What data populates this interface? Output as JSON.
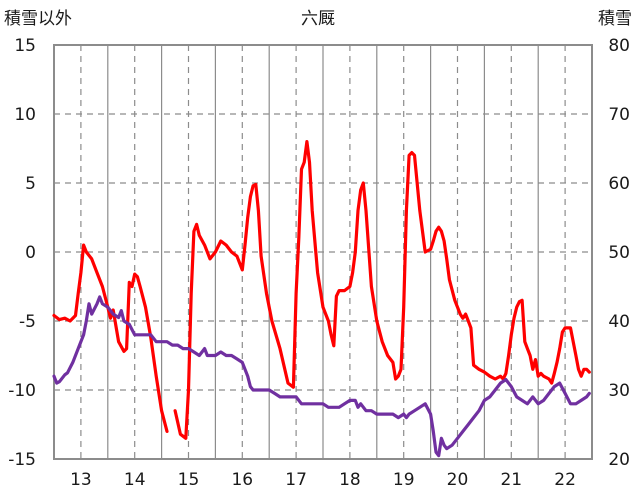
{
  "chart_data": {
    "type": "line",
    "title": "六厩",
    "left_axis_label": "積雪以外",
    "right_axis_label": "積雪",
    "left_ylim": [
      -15,
      15
    ],
    "left_yticks": [
      "15",
      "10",
      "5",
      "0",
      "-5",
      "-10",
      "-15"
    ],
    "right_ylim": [
      20,
      80
    ],
    "right_yticks": [
      "80",
      "70",
      "60",
      "50",
      "40",
      "30",
      "20"
    ],
    "xlim": [
      12.5,
      22.5
    ],
    "xticks": [
      "13",
      "14",
      "15",
      "16",
      "17",
      "18",
      "19",
      "20",
      "21",
      "22"
    ],
    "grid": true,
    "series": [
      {
        "color": "#ff0000",
        "axis": "left",
        "segments": [
          [
            [
              12.5,
              -4.6
            ],
            [
              12.6,
              -4.9
            ],
            [
              12.7,
              -4.8
            ],
            [
              12.8,
              -5.0
            ],
            [
              12.9,
              -4.6
            ],
            [
              12.95,
              -3.0
            ],
            [
              13.0,
              -1.5
            ],
            [
              13.05,
              0.5
            ],
            [
              13.1,
              0.0
            ],
            [
              13.2,
              -0.5
            ],
            [
              13.3,
              -1.5
            ],
            [
              13.4,
              -2.5
            ],
            [
              13.5,
              -4.0
            ],
            [
              13.55,
              -4.8
            ],
            [
              13.6,
              -4.2
            ],
            [
              13.7,
              -6.5
            ],
            [
              13.8,
              -7.2
            ],
            [
              13.85,
              -7.0
            ],
            [
              13.9,
              -2.2
            ],
            [
              13.95,
              -2.5
            ],
            [
              14.0,
              -1.6
            ],
            [
              14.05,
              -1.8
            ],
            [
              14.1,
              -2.5
            ],
            [
              14.2,
              -4.0
            ],
            [
              14.3,
              -6.2
            ],
            [
              14.4,
              -9.0
            ],
            [
              14.5,
              -11.5
            ],
            [
              14.6,
              -13.0
            ]
          ],
          [
            [
              14.75,
              -11.5
            ],
            [
              14.85,
              -13.2
            ],
            [
              14.95,
              -13.5
            ],
            [
              15.0,
              -10.0
            ],
            [
              15.05,
              -3.0
            ],
            [
              15.1,
              1.5
            ],
            [
              15.15,
              2.0
            ],
            [
              15.2,
              1.2
            ],
            [
              15.3,
              0.5
            ],
            [
              15.4,
              -0.5
            ],
            [
              15.5,
              0.0
            ],
            [
              15.6,
              0.8
            ],
            [
              15.7,
              0.5
            ],
            [
              15.8,
              0.0
            ],
            [
              15.9,
              -0.3
            ],
            [
              16.0,
              -1.3
            ],
            [
              16.05,
              0.5
            ],
            [
              16.1,
              2.5
            ],
            [
              16.15,
              4.0
            ],
            [
              16.2,
              4.8
            ],
            [
              16.25,
              4.9
            ],
            [
              16.3,
              3.0
            ],
            [
              16.35,
              -0.3
            ],
            [
              16.45,
              -3.0
            ],
            [
              16.55,
              -5.0
            ],
            [
              16.7,
              -7.0
            ],
            [
              16.85,
              -9.5
            ],
            [
              16.95,
              -9.8
            ],
            [
              17.0,
              -3.0
            ],
            [
              17.05,
              1.0
            ],
            [
              17.1,
              6.0
            ],
            [
              17.15,
              6.5
            ],
            [
              17.2,
              8.0
            ],
            [
              17.25,
              6.5
            ],
            [
              17.3,
              3.0
            ],
            [
              17.4,
              -1.5
            ],
            [
              17.5,
              -4.0
            ],
            [
              17.6,
              -5.0
            ],
            [
              17.65,
              -6.0
            ],
            [
              17.7,
              -6.8
            ],
            [
              17.75,
              -3.2
            ],
            [
              17.8,
              -2.8
            ],
            [
              17.9,
              -2.8
            ],
            [
              18.0,
              -2.5
            ],
            [
              18.05,
              -1.5
            ],
            [
              18.1,
              0.0
            ],
            [
              18.15,
              3.0
            ],
            [
              18.2,
              4.5
            ],
            [
              18.25,
              5.0
            ],
            [
              18.3,
              3.0
            ],
            [
              18.4,
              -2.5
            ],
            [
              18.5,
              -5.0
            ],
            [
              18.6,
              -6.5
            ],
            [
              18.7,
              -7.5
            ],
            [
              18.8,
              -8.0
            ],
            [
              18.85,
              -9.2
            ],
            [
              18.9,
              -9.0
            ],
            [
              18.95,
              -8.5
            ],
            [
              19.0,
              -4.0
            ],
            [
              19.05,
              3.0
            ],
            [
              19.1,
              7.0
            ],
            [
              19.15,
              7.2
            ],
            [
              19.2,
              7.0
            ],
            [
              19.3,
              3.0
            ],
            [
              19.4,
              0.0
            ],
            [
              19.5,
              0.2
            ],
            [
              19.55,
              0.8
            ],
            [
              19.6,
              1.5
            ],
            [
              19.65,
              1.8
            ],
            [
              19.7,
              1.5
            ],
            [
              19.75,
              0.8
            ],
            [
              19.8,
              -0.5
            ],
            [
              19.85,
              -2.0
            ],
            [
              19.95,
              -3.5
            ],
            [
              20.05,
              -4.5
            ],
            [
              20.1,
              -4.8
            ],
            [
              20.15,
              -4.5
            ],
            [
              20.2,
              -5.0
            ],
            [
              20.25,
              -5.5
            ],
            [
              20.3,
              -8.2
            ],
            [
              20.4,
              -8.5
            ],
            [
              20.5,
              -8.7
            ],
            [
              20.6,
              -9.0
            ],
            [
              20.7,
              -9.2
            ],
            [
              20.8,
              -9.0
            ],
            [
              20.85,
              -9.2
            ],
            [
              20.9,
              -8.8
            ],
            [
              20.95,
              -7.5
            ],
            [
              21.0,
              -6.0
            ],
            [
              21.05,
              -4.8
            ],
            [
              21.1,
              -4.0
            ],
            [
              21.15,
              -3.6
            ],
            [
              21.2,
              -3.5
            ],
            [
              21.25,
              -6.5
            ],
            [
              21.3,
              -7.0
            ],
            [
              21.35,
              -7.5
            ],
            [
              21.4,
              -8.5
            ],
            [
              21.45,
              -7.8
            ],
            [
              21.5,
              -9.0
            ],
            [
              21.55,
              -8.8
            ],
            [
              21.6,
              -9.0
            ],
            [
              21.7,
              -9.2
            ],
            [
              21.75,
              -9.5
            ],
            [
              21.8,
              -8.8
            ],
            [
              21.85,
              -8.0
            ],
            [
              21.9,
              -7.0
            ],
            [
              21.95,
              -5.8
            ],
            [
              22.0,
              -5.5
            ],
            [
              22.1,
              -5.5
            ],
            [
              22.2,
              -7.5
            ],
            [
              22.25,
              -8.5
            ],
            [
              22.3,
              -9.0
            ],
            [
              22.35,
              -8.5
            ],
            [
              22.4,
              -8.5
            ],
            [
              22.45,
              -8.7
            ]
          ]
        ]
      },
      {
        "color": "#7030a0",
        "axis": "right",
        "segments": [
          [
            [
              12.5,
              32.0
            ],
            [
              12.55,
              31.0
            ],
            [
              12.6,
              31.2
            ],
            [
              12.7,
              32.2
            ],
            [
              12.75,
              32.5
            ],
            [
              12.85,
              34.0
            ],
            [
              12.95,
              36.0
            ],
            [
              13.05,
              38.0
            ],
            [
              13.1,
              40.0
            ],
            [
              13.15,
              42.5
            ],
            [
              13.2,
              41.0
            ],
            [
              13.3,
              42.5
            ],
            [
              13.35,
              43.5
            ],
            [
              13.4,
              42.5
            ],
            [
              13.5,
              42.0
            ],
            [
              13.6,
              41.0
            ],
            [
              13.7,
              40.5
            ],
            [
              13.75,
              41.5
            ],
            [
              13.8,
              40.0
            ],
            [
              13.9,
              39.5
            ],
            [
              14.0,
              38.0
            ],
            [
              14.1,
              38.0
            ],
            [
              14.2,
              38.0
            ],
            [
              14.3,
              38.0
            ],
            [
              14.4,
              37.0
            ],
            [
              14.5,
              37.0
            ],
            [
              14.6,
              37.0
            ],
            [
              14.7,
              36.5
            ],
            [
              14.8,
              36.5
            ],
            [
              14.9,
              36.0
            ],
            [
              15.0,
              36.0
            ],
            [
              15.1,
              35.5
            ],
            [
              15.2,
              35.0
            ],
            [
              15.3,
              36.0
            ],
            [
              15.35,
              35.0
            ],
            [
              15.5,
              35.0
            ],
            [
              15.6,
              35.5
            ],
            [
              15.7,
              35.0
            ],
            [
              15.8,
              35.0
            ],
            [
              15.9,
              34.5
            ],
            [
              16.0,
              34.0
            ],
            [
              16.05,
              33.0
            ],
            [
              16.1,
              32.0
            ],
            [
              16.15,
              30.5
            ],
            [
              16.2,
              30.0
            ],
            [
              16.3,
              30.0
            ],
            [
              16.4,
              30.0
            ],
            [
              16.5,
              30.0
            ],
            [
              16.6,
              29.5
            ],
            [
              16.7,
              29.0
            ],
            [
              16.8,
              29.0
            ],
            [
              17.0,
              29.0
            ],
            [
              17.1,
              28.0
            ],
            [
              17.2,
              28.0
            ],
            [
              17.3,
              28.0
            ],
            [
              17.5,
              28.0
            ],
            [
              17.6,
              27.5
            ],
            [
              17.8,
              27.5
            ],
            [
              17.9,
              28.0
            ],
            [
              18.0,
              28.5
            ],
            [
              18.1,
              28.5
            ],
            [
              18.15,
              27.5
            ],
            [
              18.2,
              28.0
            ],
            [
              18.3,
              27.0
            ],
            [
              18.4,
              27.0
            ],
            [
              18.5,
              26.5
            ],
            [
              18.6,
              26.5
            ],
            [
              18.8,
              26.5
            ],
            [
              18.9,
              26.0
            ],
            [
              19.0,
              26.5
            ],
            [
              19.05,
              26.0
            ],
            [
              19.1,
              26.5
            ],
            [
              19.2,
              27.0
            ],
            [
              19.3,
              27.5
            ],
            [
              19.4,
              28.0
            ],
            [
              19.5,
              26.5
            ],
            [
              19.55,
              24.0
            ],
            [
              19.6,
              21.0
            ],
            [
              19.65,
              20.5
            ],
            [
              19.7,
              23.0
            ],
            [
              19.75,
              22.0
            ],
            [
              19.8,
              21.5
            ],
            [
              19.9,
              22.0
            ],
            [
              20.0,
              23.0
            ],
            [
              20.1,
              24.0
            ],
            [
              20.2,
              25.0
            ],
            [
              20.3,
              26.0
            ],
            [
              20.4,
              27.0
            ],
            [
              20.5,
              28.5
            ],
            [
              20.6,
              29.0
            ],
            [
              20.7,
              30.0
            ],
            [
              20.8,
              31.0
            ],
            [
              20.9,
              31.5
            ],
            [
              21.0,
              30.5
            ],
            [
              21.1,
              29.0
            ],
            [
              21.2,
              28.5
            ],
            [
              21.3,
              28.0
            ],
            [
              21.4,
              29.0
            ],
            [
              21.5,
              28.0
            ],
            [
              21.6,
              28.5
            ],
            [
              21.7,
              29.5
            ],
            [
              21.8,
              30.5
            ],
            [
              21.9,
              31.0
            ],
            [
              22.0,
              29.5
            ],
            [
              22.1,
              28.0
            ],
            [
              22.2,
              28.0
            ],
            [
              22.3,
              28.5
            ],
            [
              22.4,
              29.0
            ],
            [
              22.45,
              29.5
            ]
          ]
        ]
      }
    ]
  }
}
